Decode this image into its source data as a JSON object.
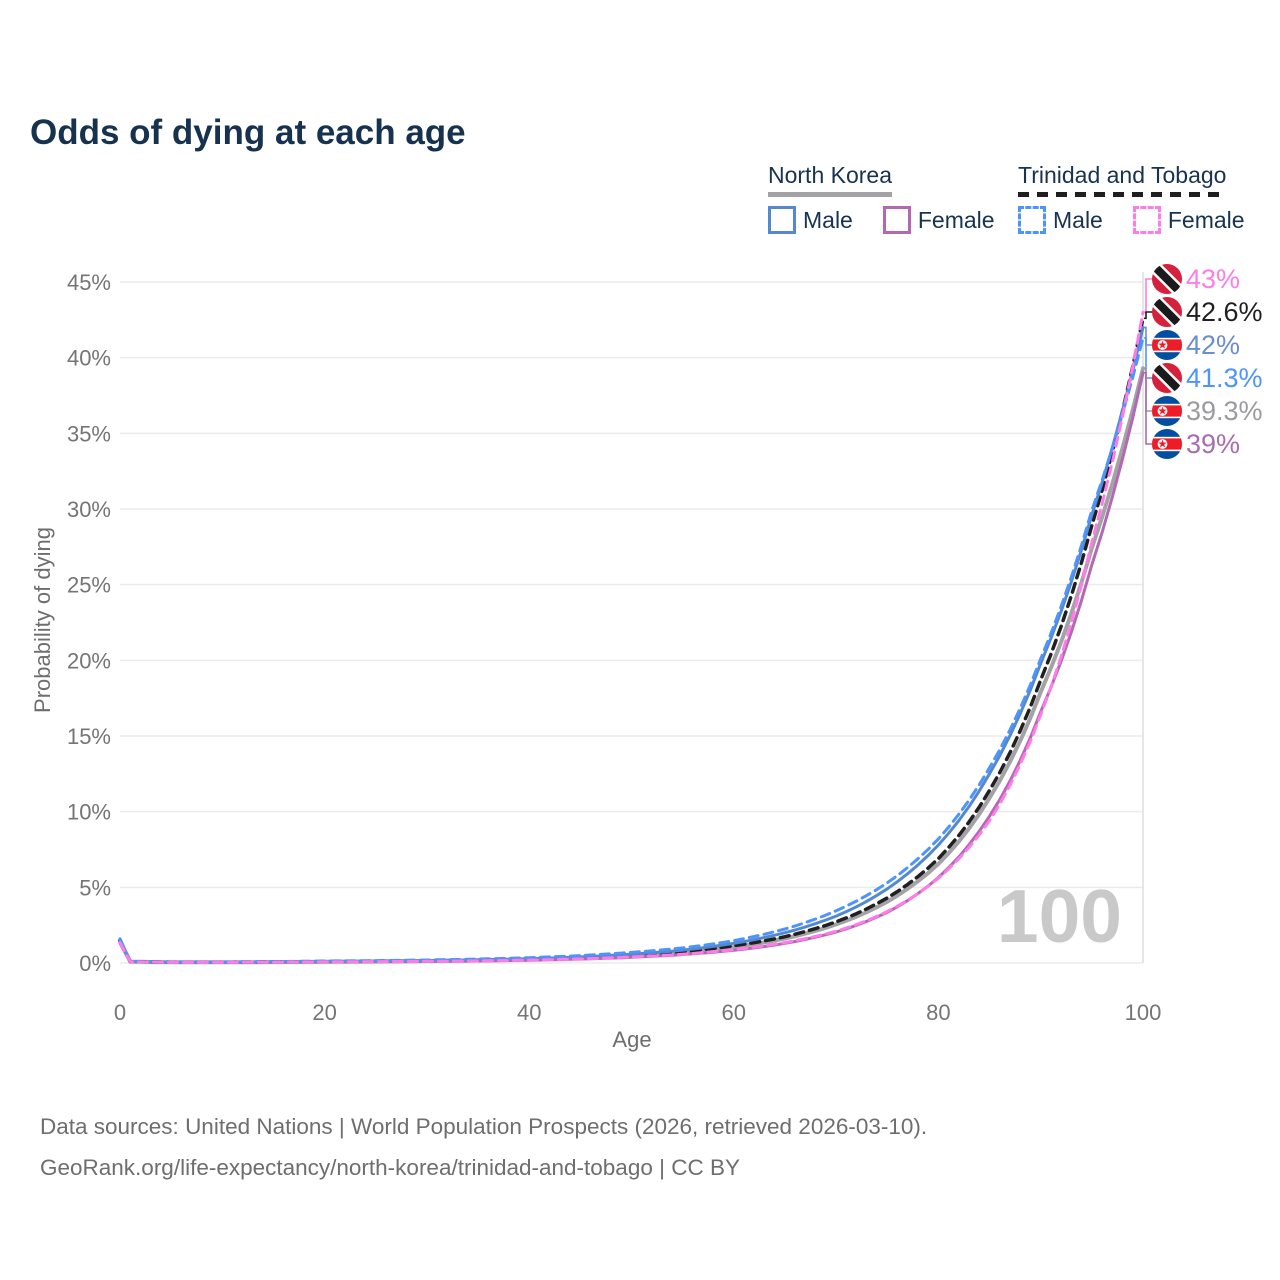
{
  "title": "Odds of dying at each age",
  "watermark": "100",
  "legend": {
    "groups": [
      {
        "country": "North Korea",
        "line_style": "solid",
        "line_color": "#a3a3a6",
        "items": [
          {
            "label": "Male",
            "color": "#5488cf",
            "style": "solid"
          },
          {
            "label": "Female",
            "color": "#b368b3",
            "style": "solid"
          }
        ]
      },
      {
        "country": "Trinidad and Tobago",
        "line_style": "dashed",
        "line_color": "#1f1f1f",
        "items": [
          {
            "label": "Male",
            "color": "#4d94ff",
            "style": "dashed"
          },
          {
            "label": "Female",
            "color": "#ff7ce8",
            "style": "dashed"
          }
        ]
      }
    ]
  },
  "chart_data": {
    "type": "line",
    "title": "Odds of dying at each age",
    "xlabel": "Age",
    "ylabel": "Probability of dying",
    "xlim": [
      0,
      100
    ],
    "ylim": [
      0,
      45
    ],
    "x_ticks": [
      0,
      20,
      40,
      60,
      80,
      100
    ],
    "y_ticks": [
      0,
      5,
      10,
      15,
      20,
      25,
      30,
      35,
      40,
      45
    ],
    "y_tick_suffix": "%",
    "grid": "horizontal",
    "age_indicator": 100,
    "x": [
      0,
      1,
      5,
      10,
      15,
      20,
      25,
      30,
      35,
      40,
      45,
      50,
      55,
      60,
      65,
      70,
      75,
      80,
      85,
      90,
      95,
      100
    ],
    "series": [
      {
        "id": "nk_overall",
        "name": "North Korea",
        "style": "solid",
        "color": "#a3a3a6",
        "width": 4,
        "values": [
          1.45,
          0.09,
          0.05,
          0.05,
          0.06,
          0.08,
          0.1,
          0.13,
          0.17,
          0.23,
          0.33,
          0.48,
          0.7,
          1.05,
          1.62,
          2.55,
          4.05,
          6.55,
          10.9,
          17.9,
          27.4,
          39.3
        ]
      },
      {
        "id": "tt_overall",
        "name": "Trinidad and Tobago",
        "style": "dashed",
        "color": "#202020",
        "width": 3.5,
        "values": [
          1.5,
          0.09,
          0.05,
          0.05,
          0.07,
          0.09,
          0.11,
          0.14,
          0.18,
          0.25,
          0.36,
          0.52,
          0.76,
          1.14,
          1.74,
          2.72,
          4.3,
          6.9,
          11.4,
          18.7,
          28.9,
          42.6
        ]
      },
      {
        "id": "nk_male",
        "name": "North Korea Male",
        "style": "solid",
        "color": "#5488cf",
        "width": 3,
        "values": [
          1.55,
          0.1,
          0.05,
          0.05,
          0.07,
          0.1,
          0.13,
          0.16,
          0.21,
          0.28,
          0.4,
          0.58,
          0.85,
          1.3,
          2.0,
          3.1,
          4.9,
          7.8,
          12.5,
          19.8,
          29.6,
          42.0
        ]
      },
      {
        "id": "nk_female",
        "name": "North Korea Female",
        "style": "solid",
        "color": "#b368b3",
        "width": 3,
        "values": [
          1.3,
          0.08,
          0.04,
          0.04,
          0.05,
          0.06,
          0.08,
          0.1,
          0.13,
          0.18,
          0.26,
          0.38,
          0.56,
          0.84,
          1.3,
          2.05,
          3.35,
          5.65,
          9.7,
          16.6,
          26.3,
          39.0
        ]
      },
      {
        "id": "tt_male",
        "name": "Trinidad and Tobago Male",
        "style": "dashed",
        "color": "#4d94ff",
        "width": 3,
        "values": [
          1.6,
          0.11,
          0.06,
          0.06,
          0.09,
          0.13,
          0.16,
          0.2,
          0.26,
          0.35,
          0.49,
          0.7,
          1.0,
          1.48,
          2.25,
          3.45,
          5.3,
          8.2,
          12.9,
          20.1,
          29.9,
          41.3
        ]
      },
      {
        "id": "tt_female",
        "name": "Trinidad and Tobago Female",
        "style": "dashed",
        "color": "#ff7ce8",
        "width": 3,
        "values": [
          1.35,
          0.08,
          0.04,
          0.04,
          0.05,
          0.07,
          0.09,
          0.11,
          0.14,
          0.19,
          0.27,
          0.4,
          0.58,
          0.88,
          1.35,
          2.1,
          3.4,
          5.6,
          9.4,
          16.4,
          27.8,
          43.0
        ]
      }
    ],
    "end_labels": [
      {
        "series_id": "tt_female",
        "text": "43%",
        "flag": "tt",
        "color": "#ff7ce8"
      },
      {
        "series_id": "tt_overall",
        "text": "42.6%",
        "flag": "tt",
        "color": "#1f1f1f"
      },
      {
        "series_id": "nk_male",
        "text": "42%",
        "flag": "nk",
        "color": "#6a8fce"
      },
      {
        "series_id": "tt_male",
        "text": "41.3%",
        "flag": "tt",
        "color": "#4d94ff"
      },
      {
        "series_id": "nk_overall",
        "text": "39.3%",
        "flag": "nk",
        "color": "#9b9b9e"
      },
      {
        "series_id": "nk_female",
        "text": "39%",
        "flag": "nk",
        "color": "#a96cb0"
      }
    ]
  },
  "flags": {
    "nk": {
      "blue": "#024FA2",
      "red": "#ED1C27",
      "white": "#ffffff"
    },
    "tt": {
      "red": "#d6203c",
      "black": "#1a1a1a",
      "white": "#ffffff"
    }
  },
  "footer": {
    "line1": "Data sources: United Nations | World Population Prospects (2026, retrieved 2026-03-10).",
    "line2": "GeoRank.org/life-expectancy/north-korea/trinidad-and-tobago | CC BY"
  }
}
